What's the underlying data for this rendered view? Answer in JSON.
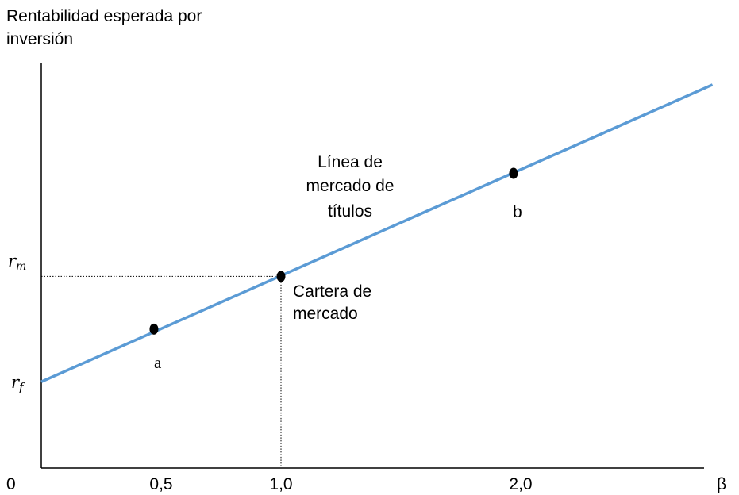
{
  "chart_data": {
    "type": "line",
    "ylabel_lines": [
      "Rentabilidad esperada por",
      "inversión"
    ],
    "xlabel": "β",
    "origin_label": "0",
    "x_ticks": [
      {
        "value": 0.5,
        "label": "0,5"
      },
      {
        "value": 1.0,
        "label": "1,0"
      },
      {
        "value": 2.0,
        "label": "2,0"
      }
    ],
    "y_ticks": [
      {
        "key": "rm",
        "label_main": "r",
        "label_sub": "m"
      },
      {
        "key": "rf",
        "label_main": "r",
        "label_sub": "f"
      }
    ],
    "series": [
      {
        "color": "#5b9bd5",
        "x": [
          0,
          2.8
        ],
        "y": [
          0.36,
          1.6
        ]
      }
    ],
    "points": [
      {
        "id": "a",
        "label": "a",
        "x": 0.47,
        "y": 0.58
      },
      {
        "id": "market",
        "label_lines": [
          "Cartera de",
          "mercado"
        ],
        "x": 1.0,
        "y": 0.8
      },
      {
        "id": "b",
        "label": "b",
        "x": 1.97,
        "y": 1.23
      }
    ],
    "annotations": [
      {
        "id": "sml",
        "lines": [
          "Línea de",
          "mercado de",
          "títulos"
        ]
      }
    ],
    "xlim": [
      0,
      2.85
    ],
    "ylim": [
      0,
      1.7
    ],
    "grid": false
  }
}
